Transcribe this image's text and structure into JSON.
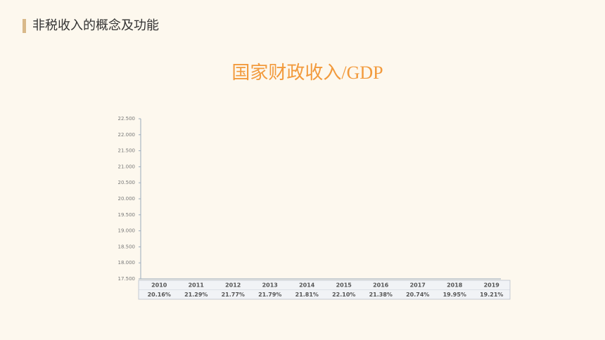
{
  "header": {
    "title": "非税收入的概念及功能"
  },
  "chart_data": {
    "type": "line",
    "title": "国家财政收入/GDP",
    "categories": [
      "2010",
      "2011",
      "2012",
      "2013",
      "2014",
      "2015",
      "2016",
      "2017",
      "2018",
      "2019"
    ],
    "series": [
      {
        "color": "#f0b43c",
        "values": [
          20.16,
          21.29,
          21.77,
          21.79,
          21.81,
          22.1,
          21.38,
          20.74,
          19.95,
          19.21
        ],
        "value_labels": [
          "20.16%",
          "21.29%",
          "21.77%",
          "21.79%",
          "21.81%",
          "22.10%",
          "21.38%",
          "20.74%",
          "19.95%",
          "19.21%"
        ]
      }
    ],
    "ylim": [
      17.5,
      22.5
    ],
    "yticks": [
      {
        "value": 17.5,
        "label": "17.500"
      },
      {
        "value": 18,
        "label": "18.000"
      },
      {
        "value": 18.5,
        "label": "18.500"
      },
      {
        "value": 19,
        "label": "19.000"
      },
      {
        "value": 19.5,
        "label": "19.500"
      },
      {
        "value": 20,
        "label": "20.000"
      },
      {
        "value": 20.5,
        "label": "20.500"
      },
      {
        "value": 21,
        "label": "21.000"
      },
      {
        "value": 21.5,
        "label": "21.500"
      },
      {
        "value": 22,
        "label": "22.000"
      },
      {
        "value": 22.5,
        "label": "22.500"
      }
    ],
    "grid": false
  }
}
